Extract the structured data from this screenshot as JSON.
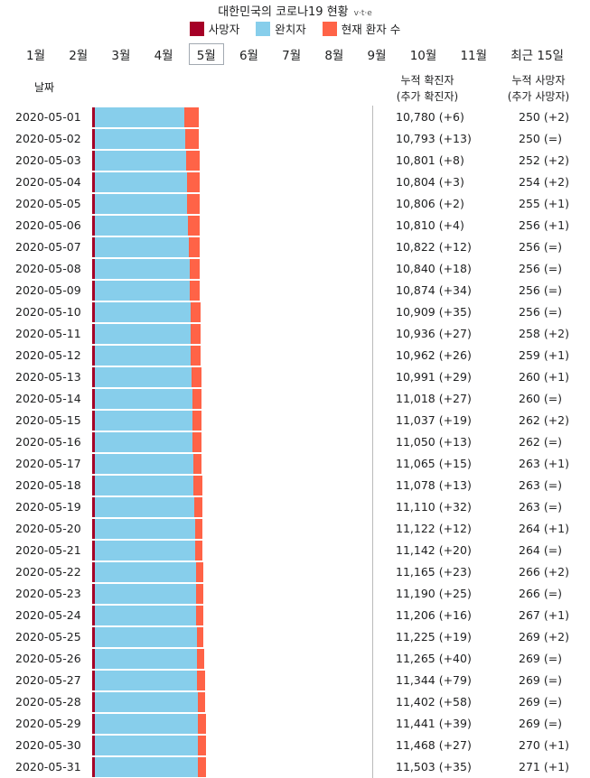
{
  "title": "대한민국의 코로나19 현황",
  "vte": "v·t·e",
  "legend": [
    {
      "label": "사망자",
      "color": "#a50026"
    },
    {
      "label": "완치자",
      "color": "#87ceeb"
    },
    {
      "label": "현재 환자 수",
      "color": "#ff6347"
    }
  ],
  "tabs": [
    "1월",
    "2월",
    "3월",
    "4월",
    "5월",
    "6월",
    "7월",
    "8월",
    "9월",
    "10월",
    "11월",
    "최근 15일"
  ],
  "active_tab": "5월",
  "headers": {
    "date": "날짜",
    "cases_line1": "누적 확진자",
    "cases_line2": "(추가 확진자)",
    "deaths_line1": "누적 사망자",
    "deaths_line2": "(추가 사망자)"
  },
  "chart_data": {
    "type": "bar",
    "stacked": true,
    "orientation": "horizontal",
    "series_names": [
      "사망자",
      "완치자",
      "현재 환자 수"
    ],
    "rows": [
      {
        "date": "2020-05-01",
        "cases": "10,780 (+6)",
        "deaths": "250 (+2)",
        "total": 10780,
        "dead": 250,
        "recovered": 9072,
        "active": 1458
      },
      {
        "date": "2020-05-02",
        "cases": "10,793 (+13)",
        "deaths": "250 (=)",
        "total": 10793,
        "dead": 250,
        "recovered": 9123,
        "active": 1420
      },
      {
        "date": "2020-05-03",
        "cases": "10,801 (+8)",
        "deaths": "252 (+2)",
        "total": 10801,
        "dead": 252,
        "recovered": 9183,
        "active": 1366
      },
      {
        "date": "2020-05-04",
        "cases": "10,804 (+3)",
        "deaths": "254 (+2)",
        "total": 10804,
        "dead": 254,
        "recovered": 9283,
        "active": 1267
      },
      {
        "date": "2020-05-05",
        "cases": "10,806 (+2)",
        "deaths": "255 (+1)",
        "total": 10806,
        "dead": 255,
        "recovered": 9333,
        "active": 1218
      },
      {
        "date": "2020-05-06",
        "cases": "10,810 (+4)",
        "deaths": "256 (+1)",
        "total": 10810,
        "dead": 256,
        "recovered": 9419,
        "active": 1135
      },
      {
        "date": "2020-05-07",
        "cases": "10,822 (+12)",
        "deaths": "256 (=)",
        "total": 10822,
        "dead": 256,
        "recovered": 9484,
        "active": 1082
      },
      {
        "date": "2020-05-08",
        "cases": "10,840 (+18)",
        "deaths": "256 (=)",
        "total": 10840,
        "dead": 256,
        "recovered": 9568,
        "active": 1016
      },
      {
        "date": "2020-05-09",
        "cases": "10,874 (+34)",
        "deaths": "256 (=)",
        "total": 10874,
        "dead": 256,
        "recovered": 9610,
        "active": 1008
      },
      {
        "date": "2020-05-10",
        "cases": "10,909 (+35)",
        "deaths": "256 (=)",
        "total": 10909,
        "dead": 256,
        "recovered": 9632,
        "active": 1021
      },
      {
        "date": "2020-05-11",
        "cases": "10,936 (+27)",
        "deaths": "258 (+2)",
        "total": 10936,
        "dead": 258,
        "recovered": 9670,
        "active": 1008
      },
      {
        "date": "2020-05-12",
        "cases": "10,962 (+26)",
        "deaths": "259 (+1)",
        "total": 10962,
        "dead": 259,
        "recovered": 9695,
        "active": 1008
      },
      {
        "date": "2020-05-13",
        "cases": "10,991 (+29)",
        "deaths": "260 (+1)",
        "total": 10991,
        "dead": 260,
        "recovered": 9762,
        "active": 969
      },
      {
        "date": "2020-05-14",
        "cases": "11,018 (+27)",
        "deaths": "260 (=)",
        "total": 11018,
        "dead": 260,
        "recovered": 9821,
        "active": 937
      },
      {
        "date": "2020-05-15",
        "cases": "11,037 (+19)",
        "deaths": "262 (+2)",
        "total": 11037,
        "dead": 262,
        "recovered": 9851,
        "active": 924
      },
      {
        "date": "2020-05-16",
        "cases": "11,050 (+13)",
        "deaths": "262 (=)",
        "total": 11050,
        "dead": 262,
        "recovered": 9888,
        "active": 900
      },
      {
        "date": "2020-05-17",
        "cases": "11,065 (+15)",
        "deaths": "263 (+1)",
        "total": 11065,
        "dead": 263,
        "recovered": 9904,
        "active": 898
      },
      {
        "date": "2020-05-18",
        "cases": "11,078 (+13)",
        "deaths": "263 (=)",
        "total": 11078,
        "dead": 263,
        "recovered": 9938,
        "active": 877
      },
      {
        "date": "2020-05-19",
        "cases": "11,110 (+32)",
        "deaths": "263 (=)",
        "total": 11110,
        "dead": 263,
        "recovered": 10066,
        "active": 781
      },
      {
        "date": "2020-05-20",
        "cases": "11,122 (+12)",
        "deaths": "264 (+1)",
        "total": 11122,
        "dead": 264,
        "recovered": 10135,
        "active": 723
      },
      {
        "date": "2020-05-21",
        "cases": "11,142 (+20)",
        "deaths": "264 (=)",
        "total": 11142,
        "dead": 264,
        "recovered": 10162,
        "active": 716
      },
      {
        "date": "2020-05-22",
        "cases": "11,165 (+23)",
        "deaths": "266 (+2)",
        "total": 11165,
        "dead": 266,
        "recovered": 10194,
        "active": 705
      },
      {
        "date": "2020-05-23",
        "cases": "11,190 (+25)",
        "deaths": "266 (=)",
        "total": 11190,
        "dead": 266,
        "recovered": 10213,
        "active": 711
      },
      {
        "date": "2020-05-24",
        "cases": "11,206 (+16)",
        "deaths": "267 (+1)",
        "total": 11206,
        "dead": 267,
        "recovered": 10226,
        "active": 713
      },
      {
        "date": "2020-05-25",
        "cases": "11,225 (+19)",
        "deaths": "269 (+2)",
        "total": 11225,
        "dead": 269,
        "recovered": 10275,
        "active": 681
      },
      {
        "date": "2020-05-26",
        "cases": "11,265 (+40)",
        "deaths": "269 (=)",
        "total": 11265,
        "dead": 269,
        "recovered": 10295,
        "active": 701
      },
      {
        "date": "2020-05-27",
        "cases": "11,344 (+79)",
        "deaths": "269 (=)",
        "total": 11344,
        "dead": 269,
        "recovered": 10340,
        "active": 735
      },
      {
        "date": "2020-05-28",
        "cases": "11,402 (+58)",
        "deaths": "269 (=)",
        "total": 11402,
        "dead": 269,
        "recovered": 10363,
        "active": 770
      },
      {
        "date": "2020-05-29",
        "cases": "11,441 (+39)",
        "deaths": "269 (=)",
        "total": 11441,
        "dead": 269,
        "recovered": 10398,
        "active": 774
      },
      {
        "date": "2020-05-30",
        "cases": "11,468 (+27)",
        "deaths": "270 (+1)",
        "total": 11468,
        "dead": 270,
        "recovered": 10405,
        "active": 793
      },
      {
        "date": "2020-05-31",
        "cases": "11,503 (+35)",
        "deaths": "271 (+1)",
        "total": 11503,
        "dead": 271,
        "recovered": 10422,
        "active": 810
      }
    ]
  }
}
